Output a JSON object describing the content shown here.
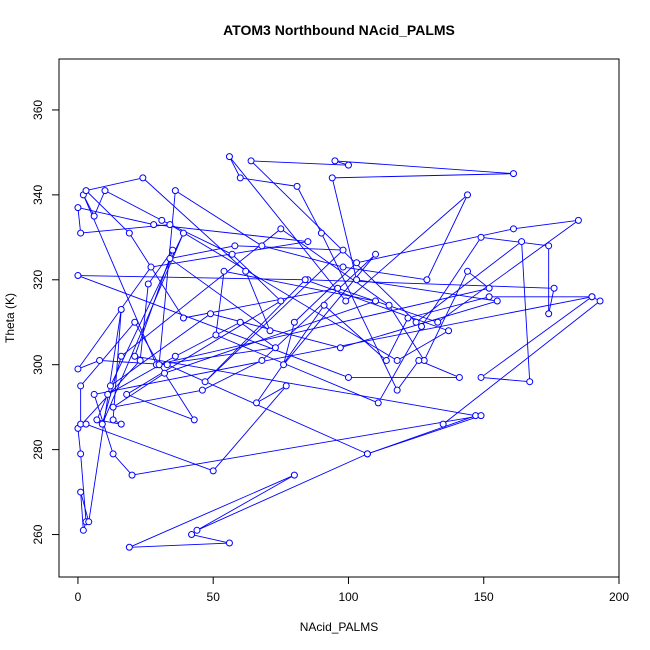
{
  "chart_data": {
    "type": "line",
    "title": "ATOM3 Northbound NAcid_PALMS",
    "xlabel": "NAcid_PALMS",
    "ylabel": "Theta (K)",
    "xlim": [
      -7,
      200
    ],
    "ylim": [
      250,
      372
    ],
    "x_ticks": [
      0,
      50,
      100,
      150,
      200
    ],
    "y_ticks": [
      260,
      280,
      300,
      320,
      340,
      360
    ],
    "series": [
      {
        "color": "#0000ff",
        "marker": "open-circle",
        "points": [
          [
            42,
            260
          ],
          [
            56,
            258
          ],
          [
            19,
            257
          ],
          [
            80,
            274
          ],
          [
            44,
            261
          ],
          [
            107,
            279
          ],
          [
            147,
            288
          ],
          [
            21,
            302
          ],
          [
            35,
            327
          ],
          [
            26,
            319
          ],
          [
            23,
            301
          ],
          [
            0,
            285
          ],
          [
            1,
            279
          ],
          [
            3,
            263
          ],
          [
            2,
            261
          ],
          [
            1,
            270
          ],
          [
            4,
            263
          ],
          [
            16,
            313
          ],
          [
            13,
            287
          ],
          [
            16,
            286
          ],
          [
            7,
            287
          ],
          [
            11,
            293
          ],
          [
            36,
            302
          ],
          [
            60,
            310
          ],
          [
            73,
            304
          ],
          [
            30,
            300
          ],
          [
            21,
            310
          ],
          [
            1,
            295
          ],
          [
            1,
            286
          ],
          [
            3,
            286
          ],
          [
            50,
            275
          ],
          [
            77,
            295
          ],
          [
            66,
            291
          ],
          [
            91,
            314
          ],
          [
            114,
            301
          ],
          [
            122,
            311
          ],
          [
            152,
            316
          ],
          [
            190,
            316
          ],
          [
            149,
            297
          ],
          [
            167,
            296
          ],
          [
            164,
            329
          ],
          [
            125,
            310
          ],
          [
            64,
            348
          ],
          [
            100,
            347
          ],
          [
            95,
            348
          ],
          [
            161,
            345
          ],
          [
            94,
            344
          ],
          [
            103,
            320
          ],
          [
            155,
            315
          ],
          [
            97,
            304
          ],
          [
            49,
            312
          ],
          [
            12,
            295
          ],
          [
            39,
            331
          ],
          [
            9,
            286
          ],
          [
            16,
            302
          ],
          [
            75,
            332
          ],
          [
            115,
            314
          ],
          [
            128,
            301
          ],
          [
            144,
            322
          ],
          [
            152,
            318
          ],
          [
            29,
            300
          ],
          [
            2,
            340
          ],
          [
            6,
            335
          ],
          [
            10,
            341
          ],
          [
            31,
            334
          ],
          [
            57,
            326
          ],
          [
            75,
            315
          ],
          [
            18,
            293
          ],
          [
            43,
            287
          ],
          [
            30,
            300
          ],
          [
            36,
            341
          ],
          [
            68,
            328
          ],
          [
            98,
            323
          ],
          [
            129,
            320
          ],
          [
            144,
            340
          ],
          [
            99,
            315
          ],
          [
            56,
            349
          ],
          [
            60,
            344
          ],
          [
            81,
            342
          ],
          [
            90,
            331
          ],
          [
            118,
            294
          ],
          [
            126,
            301
          ],
          [
            141,
            297
          ],
          [
            100,
            297
          ],
          [
            0,
            321
          ],
          [
            85,
            320
          ],
          [
            176,
            318
          ],
          [
            174,
            312
          ],
          [
            174,
            328
          ],
          [
            149,
            330
          ],
          [
            127,
            309
          ],
          [
            111,
            291
          ],
          [
            51,
            307
          ],
          [
            54,
            322
          ],
          [
            110,
            315
          ],
          [
            32,
            298
          ],
          [
            13,
            290
          ],
          [
            46,
            294
          ],
          [
            68,
            301
          ],
          [
            110,
            326
          ],
          [
            76,
            300
          ],
          [
            80,
            310
          ],
          [
            103,
            324
          ],
          [
            161,
            332
          ],
          [
            185,
            334
          ],
          [
            133,
            310
          ],
          [
            96,
            318
          ],
          [
            39,
            311
          ],
          [
            19,
            331
          ],
          [
            3,
            341
          ],
          [
            24,
            344
          ],
          [
            62,
            322
          ],
          [
            71,
            308
          ],
          [
            34,
            325
          ],
          [
            58,
            328
          ],
          [
            98,
            327
          ],
          [
            47,
            296
          ],
          [
            84,
            320
          ],
          [
            137,
            308
          ],
          [
            118,
            301
          ],
          [
            34,
            333
          ],
          [
            1,
            331
          ],
          [
            0,
            337
          ],
          [
            28,
            333
          ],
          [
            85,
            329
          ],
          [
            27,
            323
          ],
          [
            0,
            299
          ],
          [
            8,
            301
          ],
          [
            33,
            300
          ],
          [
            107,
            279
          ],
          [
            149,
            288
          ],
          [
            20,
            274
          ],
          [
            13,
            279
          ],
          [
            6,
            293
          ],
          [
            190,
            316
          ],
          [
            193,
            315
          ],
          [
            135,
            286
          ]
        ]
      }
    ]
  }
}
